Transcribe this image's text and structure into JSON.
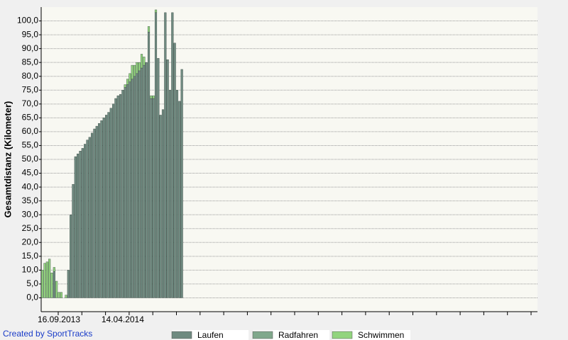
{
  "chart_data": {
    "type": "stacked-bar",
    "y_label": "Gesamtdistanz (Kilometer)",
    "credit": "Created by SportTracks",
    "categories": [
      null,
      null,
      null,
      null,
      null,
      null,
      null,
      "16.09.2013",
      null,
      null,
      null,
      null,
      null,
      null,
      null,
      null,
      null,
      null,
      null,
      null,
      null,
      null,
      null,
      null,
      null,
      null,
      null,
      null,
      null,
      null,
      null,
      null,
      null,
      null,
      "14.04.2014",
      null,
      null,
      null,
      null,
      null,
      null,
      null,
      null,
      null,
      null,
      null,
      null,
      null,
      null,
      null,
      null,
      null,
      null,
      null,
      null,
      null,
      null,
      null,
      null,
      null
    ],
    "series": [
      {
        "name": "Laufen",
        "color": "#6f8a80",
        "values": [
          0,
          0,
          0,
          0,
          0,
          9.5,
          0,
          0,
          0,
          0,
          0,
          10,
          30,
          41,
          51,
          52,
          53,
          54,
          55.5,
          57,
          58,
          59.5,
          61,
          62,
          63,
          64,
          65,
          66,
          67,
          68.5,
          70,
          72,
          73,
          73.5,
          75,
          76,
          77,
          78,
          79,
          80,
          81,
          82,
          83,
          84,
          85,
          96,
          72,
          72,
          103,
          86.5,
          66,
          68,
          103,
          86,
          75,
          103,
          92,
          75,
          71,
          82.5
        ]
      },
      {
        "name": "Radfahren",
        "color": "#80a88c",
        "values": [
          0,
          0,
          0,
          0,
          0,
          0,
          0,
          0,
          0,
          0,
          0,
          0,
          0,
          0,
          0,
          0,
          0,
          0,
          0,
          0,
          0,
          0,
          0,
          0,
          0,
          0,
          0,
          0,
          0,
          0,
          0,
          0,
          0,
          0,
          0,
          0,
          0,
          0,
          0,
          0,
          0,
          0,
          0,
          0,
          0,
          0,
          0,
          0,
          0,
          0,
          0,
          0,
          0,
          0,
          0,
          0,
          0,
          0,
          0,
          0
        ]
      },
      {
        "name": "Schwimmen",
        "color": "#92d47e",
        "values": [
          10,
          12.5,
          13,
          14,
          9,
          1.5,
          6,
          2,
          2,
          0,
          1,
          0,
          0,
          0,
          0,
          0,
          0,
          0,
          0,
          0,
          0,
          0,
          0,
          0,
          0,
          0,
          0,
          0,
          0,
          0,
          0,
          0,
          0,
          0,
          0,
          1,
          2,
          3,
          5,
          4,
          4,
          3,
          5,
          3,
          0,
          2,
          1,
          1,
          1,
          0,
          0,
          0,
          0,
          0,
          0,
          0,
          0,
          0,
          0,
          0
        ]
      }
    ],
    "ylim": [
      -5,
      105
    ],
    "yticks": [
      {
        "value": 0,
        "label": "0,0"
      },
      {
        "value": 5,
        "label": "5,0"
      },
      {
        "value": 10,
        "label": "10,0"
      },
      {
        "value": 15,
        "label": "15,0"
      },
      {
        "value": 20,
        "label": "20,0"
      },
      {
        "value": 25,
        "label": "25,0"
      },
      {
        "value": 30,
        "label": "30,0"
      },
      {
        "value": 35,
        "label": "35,0"
      },
      {
        "value": 40,
        "label": "40,0"
      },
      {
        "value": 45,
        "label": "45,0"
      },
      {
        "value": 50,
        "label": "50,0"
      },
      {
        "value": 55,
        "label": "55,0"
      },
      {
        "value": 60,
        "label": "60,0"
      },
      {
        "value": 65,
        "label": "65,0"
      },
      {
        "value": 70,
        "label": "70,0"
      },
      {
        "value": 75,
        "label": "75,0"
      },
      {
        "value": 80,
        "label": "80,0"
      },
      {
        "value": 85,
        "label": "85,0"
      },
      {
        "value": 90,
        "label": "90,0"
      },
      {
        "value": 95,
        "label": "95,0"
      },
      {
        "value": 100,
        "label": "100,0"
      }
    ],
    "grid": true,
    "legend": "bottom"
  }
}
